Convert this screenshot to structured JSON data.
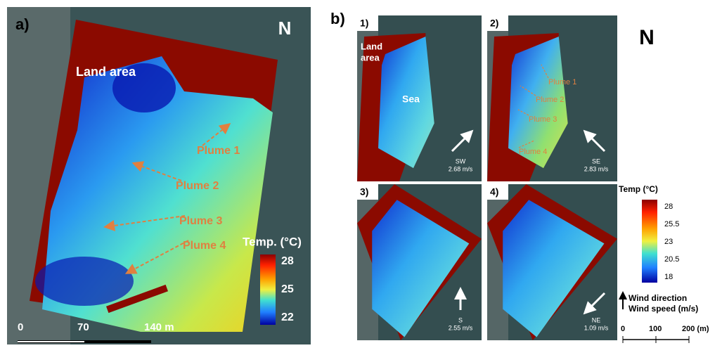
{
  "panel_a": {
    "label": "a)",
    "north": "N",
    "land_label": "Land area",
    "plumes": [
      "Plume 1",
      "Plume 2",
      "Plume 3",
      "Plume 4"
    ],
    "colorbar": {
      "title": "Temp. (°C)",
      "ticks": [
        "28",
        "25",
        "22"
      ]
    },
    "scale": [
      "0",
      "70",
      "140 m"
    ]
  },
  "panel_b": {
    "label": "b)",
    "north": "N",
    "maps": [
      {
        "label": "1)",
        "wind_dir": "SW",
        "wind_speed": "2.68 m/s"
      },
      {
        "label": "2)",
        "wind_dir": "SE",
        "wind_speed": "2.83 m/s"
      },
      {
        "label": "3)",
        "wind_dir": "S",
        "wind_speed": "2.55 m/s"
      },
      {
        "label": "4)",
        "wind_dir": "NE",
        "wind_speed": "1.09 m/s"
      }
    ],
    "land_label": [
      "Land",
      "area"
    ],
    "sea_label": "Sea",
    "plumes": [
      "Plume 1",
      "Plume 2",
      "Plume 3",
      "Plume 4"
    ],
    "colorbar": {
      "title": "Temp (°C)",
      "ticks": [
        "28",
        "25.5",
        "23",
        "20.5",
        "18"
      ]
    },
    "legend": [
      "Wind direction",
      "Wind speed (m/s)"
    ],
    "scale": [
      "0",
      "100",
      "200 (m)"
    ]
  }
}
